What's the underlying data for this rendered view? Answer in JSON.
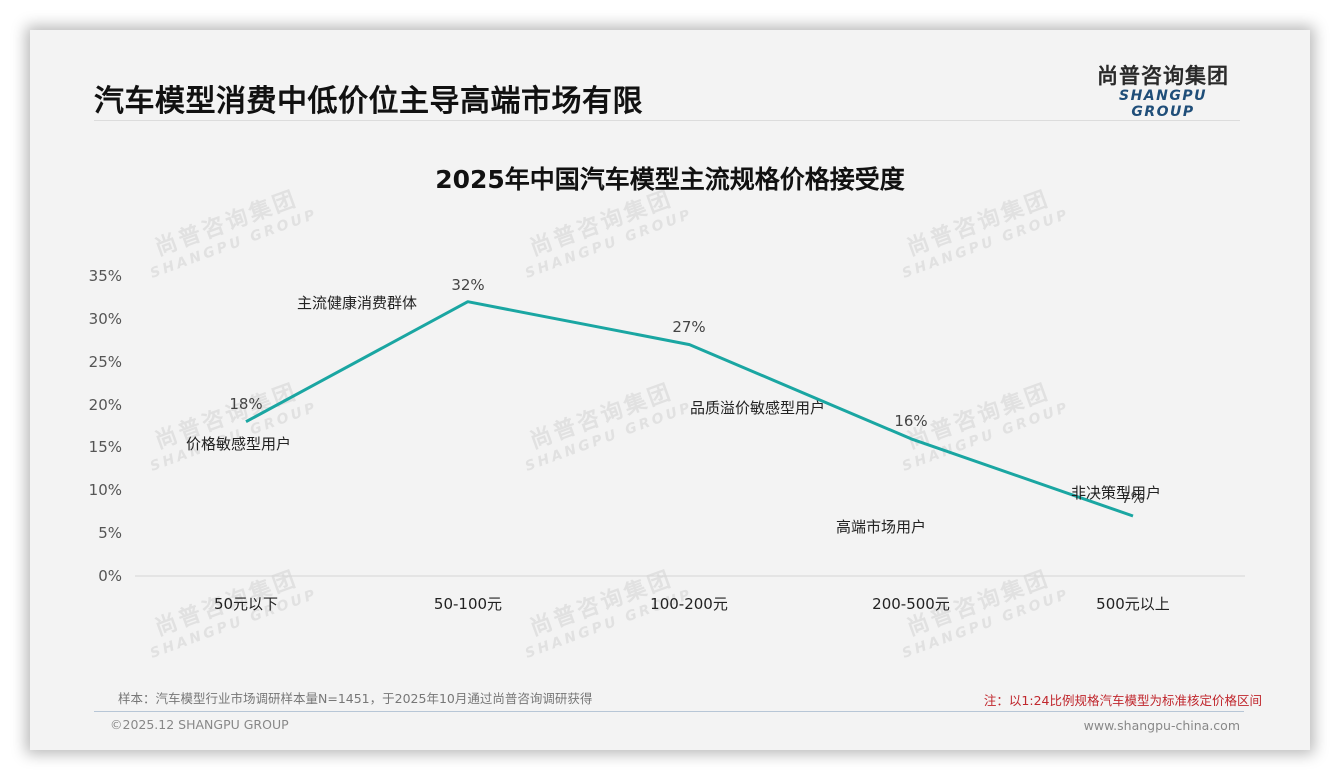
{
  "header": {
    "title": "汽车模型消费中低价位主导高端市场有限",
    "logo_cn": "尚普咨询集团",
    "logo_en": "SHANGPU GROUP"
  },
  "watermark": {
    "cn": "尚普咨询集团",
    "en": "SHANGPU GROUP"
  },
  "chart_data": {
    "type": "line",
    "title": "2025年中国汽车模型主流规格价格接受度",
    "categories": [
      "50元以下",
      "50-100元",
      "100-200元",
      "200-500元",
      "500元以上"
    ],
    "values": [
      18,
      32,
      27,
      16,
      7
    ],
    "value_labels": [
      "18%",
      "32%",
      "27%",
      "16%",
      "7%"
    ],
    "annotations": [
      "价格敏感型用户",
      "主流健康消费群体",
      "品质溢价敏感型用户",
      "高端市场用户",
      "非决策型用户"
    ],
    "yticks": [
      "35%",
      "30%",
      "25%",
      "20%",
      "15%",
      "10%",
      "5%",
      "0%"
    ],
    "ylim": [
      0,
      35
    ],
    "xlabel": "",
    "ylabel": "",
    "grid": false,
    "legend": "none",
    "line_color": "#1aa6a2"
  },
  "footer": {
    "source": "样本：汽车模型行业市场调研样本量N=1451，于2025年10月通过尚普咨询调研获得",
    "note": "注：以1:24比例规格汽车模型为标准核定价格区间",
    "copyright": "©2025.12 SHANGPU GROUP",
    "website": "www.shangpu-china.com"
  }
}
